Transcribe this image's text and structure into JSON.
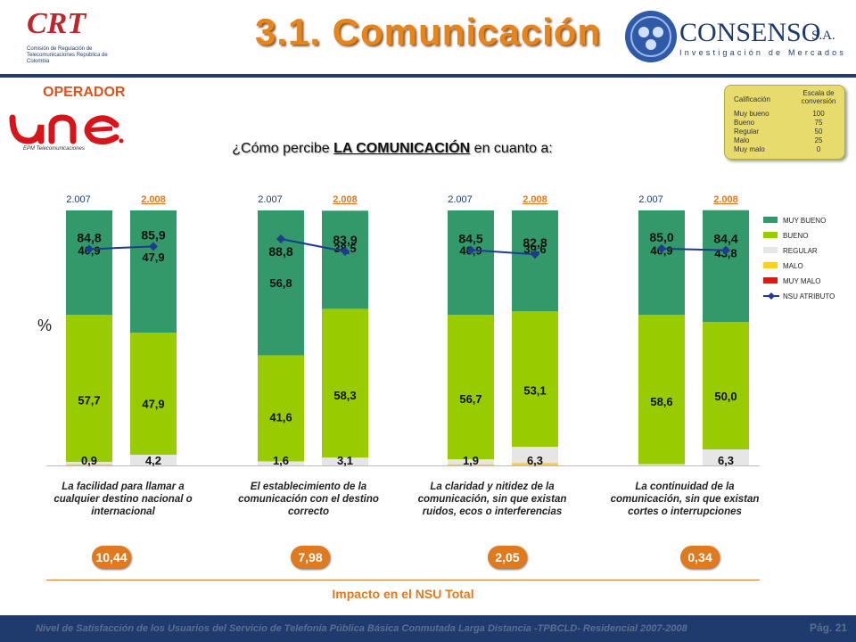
{
  "header": {
    "title": "3.1. Comunicación",
    "crt_logo_text": "CRT",
    "crt_logo_subtitle": "Comisión de Regulación de Telecomunicaciones República de Colombia",
    "consenso_name": "CONSENSO",
    "consenso_sa": "S.A.",
    "consenso_subtitle": "Investigación de Mercados"
  },
  "operador": {
    "label": "OPERADOR",
    "logo_text": "une",
    "logo_subtitle": "EPM Telecomunicaciones"
  },
  "question": {
    "prefix": "¿Cómo percibe ",
    "highlight": "LA COMUNICACIÓN",
    "suffix": " en cuanto a:"
  },
  "scale": {
    "col1": "Calificación",
    "col2": "Escala de conversión",
    "rows": [
      {
        "label": "Muy bueno",
        "value": "100"
      },
      {
        "label": "Bueno",
        "value": "75"
      },
      {
        "label": "Regular",
        "value": "50"
      },
      {
        "label": "Malo",
        "value": "25"
      },
      {
        "label": "Muy malo",
        "value": "0"
      }
    ]
  },
  "chart_data": {
    "type": "bar",
    "stacked": true,
    "ylabel": "%",
    "ylim": [
      0,
      100
    ],
    "colors": {
      "MUY BUENO": "#33996a",
      "BUENO": "#99cc00",
      "REGULAR": "#e6e6e6",
      "MALO": "#ffcc33",
      "MUY MALO": "#ee1111",
      "NSU": "#1f3b8e"
    },
    "legend": [
      "MUY BUENO",
      "BUENO",
      "REGULAR",
      "MALO",
      "MUY MALO",
      "NSU ATRIBUTO"
    ],
    "legend_position": "right",
    "groups": [
      {
        "category": "La facilidad para llamar a cualquier destino nacional o internacional",
        "impact": "10,44",
        "bars": [
          {
            "year": "2.007",
            "muy_bueno": 40.9,
            "bueno": 57.7,
            "regular": 0.9,
            "malo": 0.5,
            "muy_malo": 0,
            "nsu": 84.8,
            "labels": {
              "muy_bueno": "40,9",
              "bueno": "57,7",
              "regular": "0,9",
              "nsu": "84,8"
            }
          },
          {
            "year": "2.008",
            "muy_bueno": 47.9,
            "bueno": 47.9,
            "regular": 4.2,
            "malo": 0,
            "muy_malo": 0,
            "nsu": 85.9,
            "labels": {
              "muy_bueno": "47,9",
              "bueno": "47,9",
              "regular": "4,2",
              "nsu": "85,9"
            }
          }
        ]
      },
      {
        "category": "El establecimiento de la comunicación con el destino correcto",
        "impact": "7,98",
        "bars": [
          {
            "year": "2.007",
            "muy_bueno": 56.8,
            "bueno": 41.6,
            "regular": 1.6,
            "malo": 0,
            "muy_malo": 0,
            "nsu": 88.8,
            "labels": {
              "muy_bueno": "56,8",
              "bueno": "41,6",
              "regular": "1,6",
              "nsu": "88,8"
            }
          },
          {
            "year": "2.008",
            "muy_bueno": 38.5,
            "bueno": 58.3,
            "regular": 3.1,
            "malo": 0,
            "muy_malo": 0,
            "nsu": 83.9,
            "labels": {
              "muy_bueno": "38,5",
              "bueno": "58,3",
              "regular": "3,1",
              "nsu": "83,9"
            }
          }
        ]
      },
      {
        "category": "La claridad y nitidez de la comunicación, sin que existan ruidos, ecos o interferencias",
        "impact": "2,05",
        "bars": [
          {
            "year": "2.007",
            "muy_bueno": 40.9,
            "bueno": 56.7,
            "regular": 1.9,
            "malo": 0.5,
            "muy_malo": 0,
            "nsu": 84.5,
            "labels": {
              "muy_bueno": "40,9",
              "bueno": "56,7",
              "regular": "1,9",
              "nsu": "84,5"
            }
          },
          {
            "year": "2.008",
            "muy_bueno": 39.6,
            "bueno": 53.1,
            "regular": 6.3,
            "malo": 1.0,
            "muy_malo": 0,
            "nsu": 82.8,
            "labels": {
              "muy_bueno": "39,6",
              "bueno": "53,1",
              "regular": "6,3",
              "nsu": "82,8"
            }
          }
        ]
      },
      {
        "category": "La continuidad de la comunicación, sin que existan cortes o interrupciones",
        "impact": "0,34",
        "bars": [
          {
            "year": "2.007",
            "muy_bueno": 40.9,
            "bueno": 58.6,
            "regular": 0.5,
            "malo": 0,
            "muy_malo": 0,
            "nsu": 85.0,
            "labels": {
              "muy_bueno": "40,9",
              "bueno": "58,6",
              "nsu": "85,0"
            }
          },
          {
            "year": "2.008",
            "muy_bueno": 43.8,
            "bueno": 50.0,
            "regular": 6.3,
            "malo": 0,
            "muy_malo": 0,
            "nsu": 84.4,
            "labels": {
              "muy_bueno": "43,8",
              "bueno": "50,0",
              "regular": "6,3",
              "nsu": "84,4"
            }
          }
        ]
      }
    ]
  },
  "impact_label": "Impacto en el NSU Total",
  "footer": {
    "text": "Nivel de Satisfacción de los Usuarios del Servicio de Telefonía Pública Básica Conmutada Larga Distancia -TPBCLD- Residencial 2007-2008",
    "page": "Pág. 21"
  }
}
